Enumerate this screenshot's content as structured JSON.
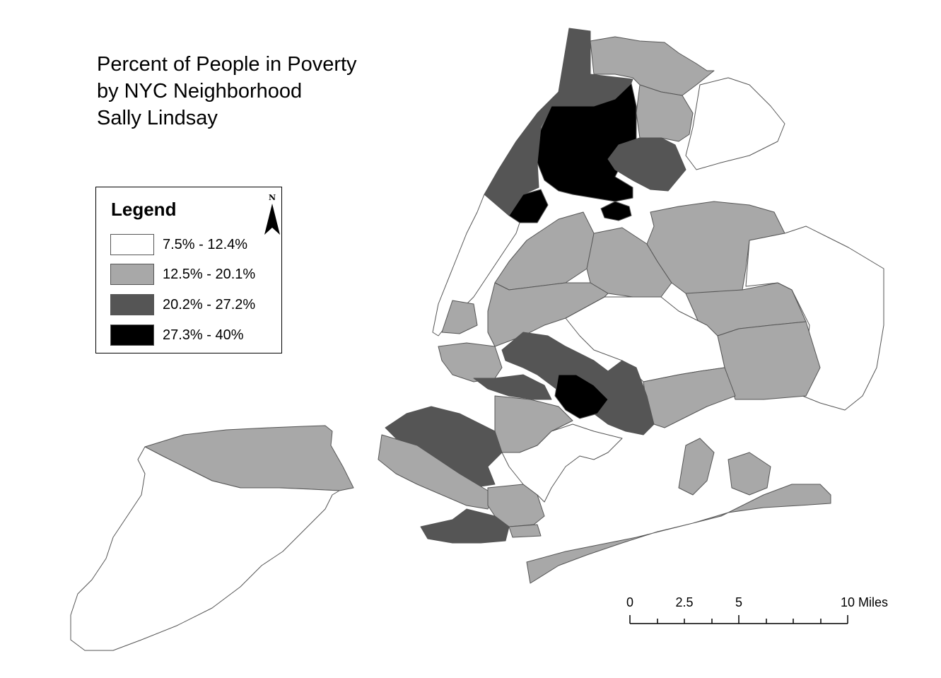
{
  "title": {
    "line1": "Percent of People in Poverty",
    "line2": "by NYC Neighborhood",
    "line3": "Sally Lindsay"
  },
  "legend": {
    "heading": "Legend",
    "north_label": "N",
    "north_icon": "north-arrow-icon",
    "classes": [
      {
        "label": "7.5% - 12.4%",
        "color": "#ffffff"
      },
      {
        "label": "12.5% - 20.1%",
        "color": "#a8a8a8"
      },
      {
        "label": "20.2% - 27.2%",
        "color": "#555555"
      },
      {
        "label": "27.3% - 40%",
        "color": "#000000"
      }
    ]
  },
  "scale_bar": {
    "labels": [
      "0",
      "2.5",
      "5",
      "10 Miles"
    ]
  }
}
